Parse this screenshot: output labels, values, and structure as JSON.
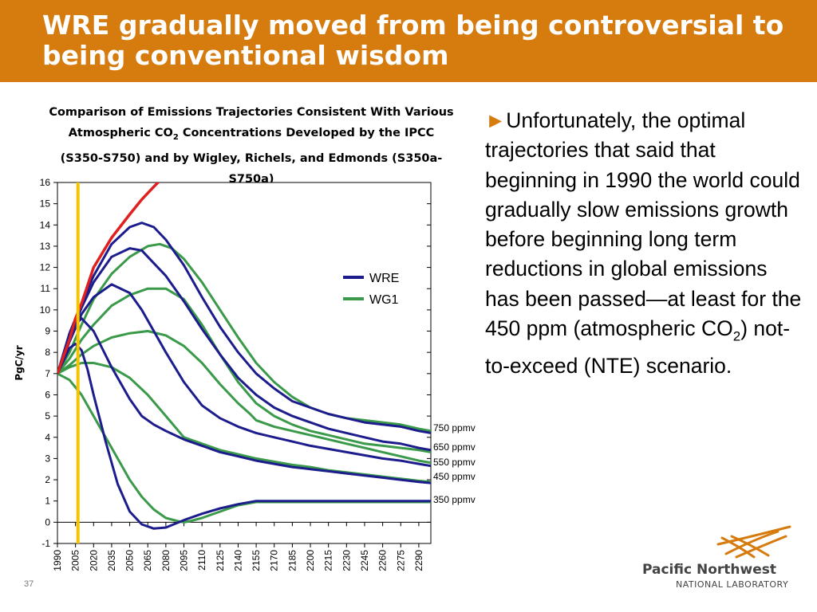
{
  "slide": {
    "title": "WRE gradually moved from being controversial to being conventional wisdom",
    "number": "37"
  },
  "chart_title": {
    "pre": "Comparison of Emissions Trajectories Consistent With Various Atmospheric CO",
    "sub": "2",
    "post": " Concentrations Developed by the IPCC (S350-S750) and by Wigley, Richels, and Edmonds (S350a-S750a)"
  },
  "body": {
    "bullet": "►",
    "text_1": "Unfortunately, the optimal trajectories that said that beginning in 1990 the world could gradually slow emissions growth before beginning long term reductions in global emissions has been passed—at least for the 450 ppm (atmospheric CO",
    "sub": "2",
    "text_2": ") not-to-exceed (NTE) scenario."
  },
  "logo": {
    "line1": "Pacific Northwest",
    "line2": "NATIONAL LABORATORY"
  },
  "colors": {
    "title_bar": "#d67b0e",
    "wre": "#1c1c8c",
    "wg1": "#3a9a4a",
    "actual": "#e02020",
    "marker": "#f5c400"
  },
  "chart_data": {
    "type": "line",
    "ylabel": "PgC/yr",
    "ylim": [
      -1,
      16
    ],
    "yticks": [
      -1,
      0,
      1,
      2,
      3,
      4,
      5,
      6,
      7,
      8,
      9,
      10,
      11,
      12,
      13,
      14,
      15,
      16
    ],
    "xlim": [
      1990,
      2300
    ],
    "xticks": [
      1990,
      2005,
      2020,
      2035,
      2050,
      2065,
      2080,
      2095,
      2110,
      2125,
      2140,
      2155,
      2170,
      2185,
      2200,
      2215,
      2230,
      2245,
      2260,
      2275,
      2290
    ],
    "legend": [
      "WRE",
      "WG1"
    ],
    "legend_position": "top-right",
    "marker_year": 2007,
    "series": [
      {
        "name": "WRE",
        "label": "750 ppmv",
        "x": [
          1990,
          2000,
          2010,
          2020,
          2035,
          2050,
          2060,
          2070,
          2080,
          2095,
          2110,
          2125,
          2140,
          2155,
          2170,
          2185,
          2200,
          2215,
          2230,
          2245,
          2260,
          2275,
          2290,
          2300
        ],
        "y": [
          7,
          8.9,
          10.3,
          11.6,
          13.1,
          13.9,
          14.1,
          13.9,
          13.3,
          12.1,
          10.6,
          9.2,
          8.0,
          7.0,
          6.3,
          5.7,
          5.4,
          5.1,
          4.9,
          4.7,
          4.6,
          4.5,
          4.3,
          4.2
        ]
      },
      {
        "name": "WRE",
        "label": "650 ppmv",
        "x": [
          1990,
          2000,
          2010,
          2020,
          2035,
          2050,
          2060,
          2070,
          2080,
          2095,
          2110,
          2125,
          2140,
          2155,
          2170,
          2185,
          2200,
          2215,
          2230,
          2245,
          2260,
          2275,
          2290,
          2300
        ],
        "y": [
          7,
          8.7,
          10.1,
          11.3,
          12.5,
          12.9,
          12.8,
          12.2,
          11.6,
          10.4,
          9.1,
          7.9,
          6.8,
          6.0,
          5.4,
          5.0,
          4.7,
          4.4,
          4.2,
          4.0,
          3.8,
          3.7,
          3.5,
          3.4
        ]
      },
      {
        "name": "WRE",
        "label": "550 ppmv",
        "x": [
          1990,
          2000,
          2010,
          2020,
          2035,
          2050,
          2060,
          2070,
          2080,
          2095,
          2110,
          2125,
          2140,
          2155,
          2170,
          2185,
          2200,
          2215,
          2230,
          2245,
          2260,
          2275,
          2290,
          2300
        ],
        "y": [
          7,
          8.5,
          9.8,
          10.6,
          11.2,
          10.8,
          10.0,
          9.0,
          8.0,
          6.6,
          5.5,
          4.9,
          4.5,
          4.2,
          4.0,
          3.8,
          3.6,
          3.45,
          3.3,
          3.15,
          3.0,
          2.9,
          2.75,
          2.65
        ]
      },
      {
        "name": "WRE",
        "label": "450 ppmv",
        "x": [
          1990,
          2000,
          2005,
          2010,
          2020,
          2035,
          2050,
          2060,
          2070,
          2080,
          2095,
          2110,
          2125,
          2140,
          2155,
          2170,
          2185,
          2200,
          2215,
          2230,
          2245,
          2260,
          2275,
          2290,
          2300
        ],
        "y": [
          7,
          8.6,
          9.3,
          9.6,
          9.0,
          7.3,
          5.8,
          5.0,
          4.6,
          4.3,
          3.9,
          3.6,
          3.3,
          3.1,
          2.9,
          2.75,
          2.6,
          2.5,
          2.4,
          2.3,
          2.2,
          2.1,
          2.0,
          1.9,
          1.85
        ]
      },
      {
        "name": "WRE",
        "label": "350 ppmv",
        "x": [
          1990,
          2000,
          2005,
          2010,
          2015,
          2020,
          2030,
          2040,
          2050,
          2060,
          2070,
          2080,
          2095,
          2110,
          2125,
          2140,
          2155,
          2170,
          2200,
          2230,
          2260,
          2290,
          2300
        ],
        "y": [
          7,
          8.2,
          8.4,
          8.1,
          7.2,
          6.0,
          3.8,
          1.8,
          0.5,
          -0.1,
          -0.3,
          -0.25,
          0.1,
          0.4,
          0.65,
          0.85,
          1.0,
          1.0,
          1.0,
          1.0,
          1.0,
          1.0,
          1.0
        ]
      },
      {
        "name": "WG1",
        "label": "750 ppmv",
        "x": [
          1990,
          2000,
          2010,
          2020,
          2035,
          2050,
          2065,
          2075,
          2085,
          2095,
          2110,
          2125,
          2140,
          2155,
          2170,
          2185,
          2200,
          2215,
          2230,
          2245,
          2260,
          2275,
          2290,
          2300
        ],
        "y": [
          7,
          8.0,
          9.3,
          10.5,
          11.7,
          12.5,
          13.0,
          13.1,
          12.9,
          12.4,
          11.3,
          10.0,
          8.7,
          7.5,
          6.6,
          5.9,
          5.4,
          5.1,
          4.9,
          4.8,
          4.7,
          4.6,
          4.4,
          4.3
        ]
      },
      {
        "name": "WG1",
        "label": "650 ppmv",
        "x": [
          1990,
          2000,
          2010,
          2020,
          2035,
          2050,
          2065,
          2080,
          2095,
          2110,
          2125,
          2140,
          2155,
          2170,
          2185,
          2200,
          2215,
          2230,
          2245,
          2260,
          2275,
          2290,
          2300
        ],
        "y": [
          7,
          7.7,
          8.6,
          9.3,
          10.2,
          10.7,
          11.0,
          11.0,
          10.5,
          9.3,
          7.9,
          6.6,
          5.6,
          5.0,
          4.6,
          4.3,
          4.1,
          3.9,
          3.7,
          3.6,
          3.5,
          3.4,
          3.3
        ]
      },
      {
        "name": "WG1",
        "label": "550 ppmv",
        "x": [
          1990,
          2000,
          2010,
          2020,
          2035,
          2050,
          2065,
          2080,
          2095,
          2110,
          2125,
          2140,
          2150,
          2155,
          2170,
          2185,
          2200,
          2215,
          2230,
          2245,
          2260,
          2275,
          2290,
          2300
        ],
        "y": [
          7,
          7.4,
          7.9,
          8.3,
          8.7,
          8.9,
          9.0,
          8.8,
          8.3,
          7.5,
          6.5,
          5.6,
          5.1,
          4.8,
          4.5,
          4.3,
          4.1,
          3.9,
          3.7,
          3.5,
          3.3,
          3.1,
          2.9,
          2.8
        ]
      },
      {
        "name": "WG1",
        "label": "450 ppmv",
        "x": [
          1990,
          2000,
          2010,
          2020,
          2035,
          2050,
          2065,
          2080,
          2095,
          2110,
          2125,
          2140,
          2155,
          2170,
          2185,
          2200,
          2215,
          2230,
          2245,
          2260,
          2275,
          2290,
          2300
        ],
        "y": [
          7,
          7.3,
          7.5,
          7.5,
          7.3,
          6.8,
          6.0,
          5.0,
          4.0,
          3.7,
          3.4,
          3.2,
          3.0,
          2.85,
          2.7,
          2.6,
          2.45,
          2.35,
          2.25,
          2.15,
          2.05,
          1.95,
          1.9
        ]
      },
      {
        "name": "WG1",
        "label": "350 ppmv",
        "x": [
          1990,
          2000,
          2010,
          2020,
          2030,
          2040,
          2050,
          2060,
          2070,
          2080,
          2090,
          2095,
          2100,
          2110,
          2125,
          2140,
          2155,
          2200,
          2250,
          2300
        ],
        "y": [
          7,
          6.7,
          6.0,
          5.0,
          4.0,
          3.0,
          2.0,
          1.2,
          0.6,
          0.2,
          0.05,
          0.0,
          0.05,
          0.2,
          0.5,
          0.8,
          0.95,
          0.95,
          0.95,
          0.95
        ]
      },
      {
        "name": "Actual",
        "x": [
          1990,
          1995,
          2000,
          2005,
          2010,
          2020,
          2035,
          2050,
          2060,
          2070,
          2077
        ],
        "y": [
          7,
          7.8,
          8.6,
          9.6,
          10.3,
          12.0,
          13.4,
          14.5,
          15.2,
          15.8,
          16.2
        ]
      }
    ],
    "line_labels": [
      {
        "text": "750 ppmv",
        "y": 4.3
      },
      {
        "text": "650 ppmv",
        "y": 3.4
      },
      {
        "text": "550 ppmv",
        "y": 2.7
      },
      {
        "text": "450 ppmv",
        "y": 2.0
      },
      {
        "text": "350 ppmv",
        "y": 0.95
      }
    ]
  }
}
